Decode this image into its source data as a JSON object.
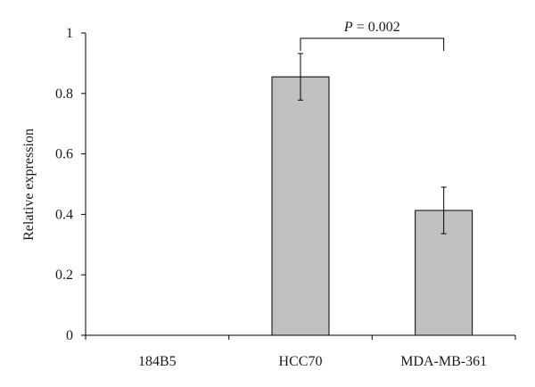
{
  "chart_data": {
    "type": "bar",
    "title": "",
    "xlabel": "",
    "ylabel": "Relative expression",
    "categories": [
      "184B5",
      "HCC70",
      "MDA-MB-361"
    ],
    "values": [
      0,
      0.855,
      0.413
    ],
    "error": [
      0,
      0.077,
      0.077
    ],
    "ylim": [
      0,
      1
    ],
    "yticks": [
      "0",
      "0.2",
      "0.4",
      "0.6",
      "0.8",
      "1"
    ],
    "grid": false,
    "legend": "none",
    "bar_color": "#c0c0c0",
    "bar_edge_color": "#000000",
    "annotation": {
      "text_italic": "P",
      "text_rest": " = 0.002",
      "between": [
        "HCC70",
        "MDA-MB-361"
      ]
    }
  }
}
